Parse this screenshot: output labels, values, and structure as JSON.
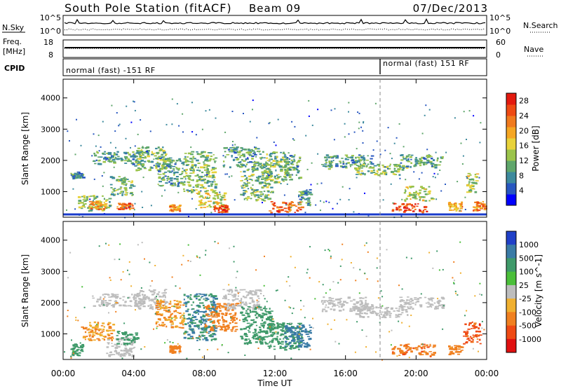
{
  "header": {
    "title": "South Pole Station (fitACF)",
    "beam": "Beam 09",
    "date": "07/Dec/2013"
  },
  "nsky_panel": {
    "label": "N.Sky",
    "right_label": "N.Search",
    "y_ticks_left": [
      "10^5",
      "10^0"
    ],
    "y_ticks_right": [
      "10^5",
      "10^0"
    ]
  },
  "freq_panel": {
    "label_top": "Freq.",
    "label_unit": "[MHz]",
    "right_label": "Nave",
    "y_ticks_left": [
      "18",
      "8"
    ],
    "y_ticks_right": [
      "60",
      "0"
    ]
  },
  "cpid_panel": {
    "label": "CPID",
    "segments": [
      {
        "text": "normal (fast) -151 RF",
        "start": "00:00"
      },
      {
        "text": "normal (fast) 151 RF",
        "start": "18:00"
      }
    ]
  },
  "chart_data": [
    {
      "type": "heatmap",
      "name": "power",
      "ylabel": "Slant Range [km]",
      "xlabel": "Time UT",
      "xlim": [
        0,
        24
      ],
      "ylim": [
        180,
        4600
      ],
      "yticks": [
        "1000",
        "2000",
        "3000",
        "4000"
      ],
      "colorbar": {
        "label": "Power [dB]",
        "range": [
          0,
          30
        ],
        "ticks": [
          "4",
          "8",
          "12",
          "16",
          "20",
          "24",
          "28"
        ],
        "colors": [
          "#0000ff",
          "#2857c0",
          "#3d8a9d",
          "#5fa66b",
          "#9bc44b",
          "#e8d23a",
          "#f5a623",
          "#f07a1e",
          "#ee4a13",
          "#e31a0f"
        ]
      },
      "regions": [
        {
          "t": [
            0.4,
            1.1
          ],
          "r": [
            1450,
            1650
          ],
          "level": 8
        },
        {
          "t": [
            0.8,
            2.6
          ],
          "r": [
            400,
            900
          ],
          "level": 12
        },
        {
          "t": [
            1.6,
            4.6
          ],
          "r": [
            1900,
            2300
          ],
          "level": 10
        },
        {
          "t": [
            1.4,
            2.4
          ],
          "r": [
            450,
            700
          ],
          "level": 20
        },
        {
          "t": [
            2.6,
            4.0
          ],
          "r": [
            900,
            1500
          ],
          "level": 12
        },
        {
          "t": [
            3.0,
            3.9
          ],
          "r": [
            450,
            650
          ],
          "level": 24
        },
        {
          "t": [
            4.0,
            5.8
          ],
          "r": [
            1700,
            2450
          ],
          "level": 12
        },
        {
          "t": [
            5.2,
            6.8
          ],
          "r": [
            1200,
            2100
          ],
          "level": 10
        },
        {
          "t": [
            6.0,
            6.6
          ],
          "r": [
            400,
            600
          ],
          "level": 20
        },
        {
          "t": [
            6.8,
            8.6
          ],
          "r": [
            1000,
            2300
          ],
          "level": 12
        },
        {
          "t": [
            7.5,
            9.2
          ],
          "r": [
            500,
            1000
          ],
          "level": 16
        },
        {
          "t": [
            8.5,
            9.3
          ],
          "r": [
            350,
            600
          ],
          "level": 26
        },
        {
          "t": [
            9.0,
            11.2
          ],
          "r": [
            1800,
            2450
          ],
          "level": 10
        },
        {
          "t": [
            10.0,
            11.8
          ],
          "r": [
            700,
            1900
          ],
          "level": 12
        },
        {
          "t": [
            11.2,
            12.8
          ],
          "r": [
            1300,
            2300
          ],
          "level": 12
        },
        {
          "t": [
            11.6,
            13.5
          ],
          "r": [
            350,
            700
          ],
          "level": 24
        },
        {
          "t": [
            12.5,
            13.4
          ],
          "r": [
            1400,
            2200
          ],
          "level": 10
        },
        {
          "t": [
            13.3,
            14.0
          ],
          "r": [
            600,
            1100
          ],
          "level": 10
        },
        {
          "t": [
            14.6,
            17.5
          ],
          "r": [
            1750,
            2200
          ],
          "level": 10
        },
        {
          "t": [
            16.5,
            19.5
          ],
          "r": [
            1550,
            1900
          ],
          "level": 12
        },
        {
          "t": [
            19.0,
            21.5
          ],
          "r": [
            1800,
            2200
          ],
          "level": 10
        },
        {
          "t": [
            18.6,
            20.6
          ],
          "r": [
            350,
            650
          ],
          "level": 26
        },
        {
          "t": [
            19.3,
            20.9
          ],
          "r": [
            700,
            1200
          ],
          "level": 14
        },
        {
          "t": [
            21.8,
            22.6
          ],
          "r": [
            400,
            700
          ],
          "level": 20
        },
        {
          "t": [
            22.8,
            23.4
          ],
          "r": [
            1000,
            1600
          ],
          "level": 14
        },
        {
          "t": [
            23.2,
            23.9
          ],
          "r": [
            400,
            700
          ],
          "level": 22
        }
      ]
    },
    {
      "type": "heatmap",
      "name": "velocity",
      "ylabel": "Slant Range [km]",
      "xlabel": "Time UT",
      "xlim": [
        0,
        24
      ],
      "ylim": [
        180,
        4600
      ],
      "yticks": [
        "1000",
        "2000",
        "3000",
        "4000"
      ],
      "xticks": [
        "00:00",
        "04:00",
        "08:00",
        "12:00",
        "16:00",
        "20:00",
        "00:00"
      ],
      "colorbar": {
        "label": "Velocity [m s^-1]",
        "ticks": [
          "1000",
          "500",
          "100",
          "25",
          "-25",
          "-100",
          "-500",
          "-1000"
        ],
        "colors": [
          "#2040c8",
          "#3a7ba6",
          "#3f9a6a",
          "#4bbf3a",
          "#bdbdbd",
          "#f0b030",
          "#f08020",
          "#ef4a14",
          "#e01010"
        ]
      },
      "regions": [
        {
          "t": [
            0.4,
            1.1
          ],
          "r": [
            300,
            700
          ],
          "v": 100
        },
        {
          "t": [
            1.0,
            2.8
          ],
          "r": [
            800,
            1400
          ],
          "v": -100
        },
        {
          "t": [
            1.6,
            4.6
          ],
          "r": [
            1900,
            2300
          ],
          "v": 0
        },
        {
          "t": [
            2.4,
            4.0
          ],
          "r": [
            300,
            900
          ],
          "v": 0
        },
        {
          "t": [
            3.0,
            4.2
          ],
          "r": [
            700,
            1100
          ],
          "v": 100
        },
        {
          "t": [
            4.0,
            5.8
          ],
          "r": [
            1800,
            2450
          ],
          "v": 0
        },
        {
          "t": [
            5.2,
            6.8
          ],
          "r": [
            1200,
            2100
          ],
          "v": -100
        },
        {
          "t": [
            6.0,
            6.6
          ],
          "r": [
            400,
            650
          ],
          "v": -300
        },
        {
          "t": [
            6.8,
            8.6
          ],
          "r": [
            800,
            2300
          ],
          "v": 300
        },
        {
          "t": [
            8.0,
            9.8
          ],
          "r": [
            1100,
            2000
          ],
          "v": -300
        },
        {
          "t": [
            9.0,
            11.2
          ],
          "r": [
            1800,
            2450
          ],
          "v": 0
        },
        {
          "t": [
            10.0,
            11.8
          ],
          "r": [
            700,
            1900
          ],
          "v": 200
        },
        {
          "t": [
            11.5,
            13.5
          ],
          "r": [
            500,
            1400
          ],
          "v": 100
        },
        {
          "t": [
            12.5,
            14.0
          ],
          "r": [
            600,
            1300
          ],
          "v": 500
        },
        {
          "t": [
            14.6,
            17.5
          ],
          "r": [
            1750,
            2200
          ],
          "v": 0
        },
        {
          "t": [
            16.5,
            19.5
          ],
          "r": [
            1550,
            1900
          ],
          "v": 0
        },
        {
          "t": [
            19.0,
            21.5
          ],
          "r": [
            1800,
            2200
          ],
          "v": 0
        },
        {
          "t": [
            18.6,
            21.0
          ],
          "r": [
            300,
            700
          ],
          "v": -400
        },
        {
          "t": [
            21.8,
            22.6
          ],
          "r": [
            350,
            650
          ],
          "v": -150
        },
        {
          "t": [
            22.6,
            23.6
          ],
          "r": [
            700,
            1400
          ],
          "v": -600
        }
      ]
    }
  ]
}
